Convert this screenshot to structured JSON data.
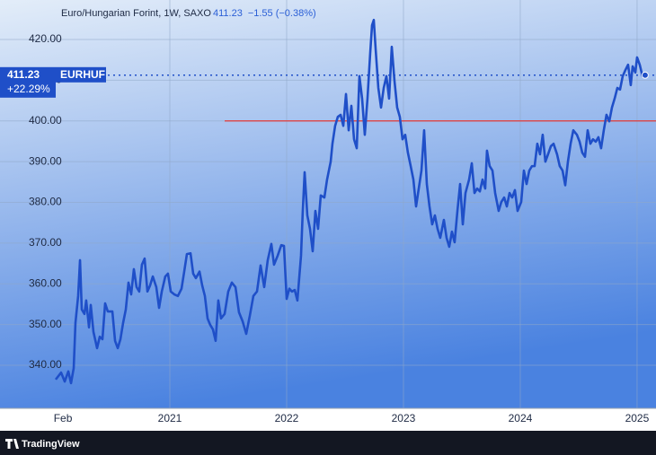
{
  "chart_data": {
    "type": "line",
    "title": "Euro/Hungarian Forint, 1W, SAXO",
    "last_label": "411.23",
    "change_label": "−1.55 (−0.38%)",
    "symbol": "EURHUF",
    "percent_label": "+22.29%",
    "brand": "TradingView",
    "grid": true,
    "hline": {
      "value": 400,
      "color": "#e53935"
    },
    "xlim": [
      2019.546,
      2025.162
    ],
    "ylim": [
      329.42,
      429.7
    ],
    "xticks": [
      {
        "value": 2020.085,
        "label": "Feb"
      },
      2021,
      2022,
      2023,
      2024,
      2025
    ],
    "yticks": [
      {
        "value": 340,
        "label": "340.00"
      },
      {
        "value": 350,
        "label": "350.00"
      },
      {
        "value": 360,
        "label": "360.00"
      },
      {
        "value": 370,
        "label": "370.00"
      },
      {
        "value": 380,
        "label": "380.00"
      },
      {
        "value": 390,
        "label": "390.00"
      },
      {
        "value": 400,
        "label": "400.00"
      },
      {
        "value": 410,
        "label": "410.00"
      },
      {
        "value": 420,
        "label": "420.00"
      }
    ],
    "series": [
      {
        "name": "EURHUF",
        "color": "#1f4fc8",
        "x": [
          2020.023,
          2020.069,
          2020.1,
          2020.131,
          2020.154,
          2020.177,
          2020.192,
          2020.215,
          2020.231,
          2020.246,
          2020.269,
          2020.284,
          2020.308,
          2020.323,
          2020.346,
          2020.377,
          2020.4,
          2020.423,
          2020.446,
          2020.469,
          2020.508,
          2020.531,
          2020.554,
          2020.577,
          2020.6,
          2020.623,
          2020.646,
          2020.669,
          2020.692,
          2020.715,
          2020.738,
          2020.761,
          2020.784,
          2020.808,
          2020.831,
          2020.854,
          2020.884,
          2020.908,
          2020.931,
          2020.961,
          2020.984,
          2021.008,
          2021.038,
          2021.069,
          2021.1,
          2021.123,
          2021.146,
          2021.177,
          2021.2,
          2021.223,
          2021.254,
          2021.277,
          2021.3,
          2021.323,
          2021.346,
          2021.369,
          2021.392,
          2021.415,
          2021.438,
          2021.469,
          2021.5,
          2021.531,
          2021.562,
          2021.592,
          2021.623,
          2021.654,
          2021.685,
          2021.715,
          2021.746,
          2021.777,
          2021.808,
          2021.838,
          2021.869,
          2021.892,
          2021.923,
          2021.954,
          2021.977,
          2022.0,
          2022.023,
          2022.046,
          2022.069,
          2022.092,
          2022.123,
          2022.138,
          2022.154,
          2022.177,
          2022.2,
          2022.223,
          2022.246,
          2022.269,
          2022.292,
          2022.323,
          2022.346,
          2022.377,
          2022.392,
          2022.415,
          2022.438,
          2022.462,
          2022.485,
          2022.508,
          2022.531,
          2022.554,
          2022.577,
          2022.6,
          2022.623,
          2022.646,
          2022.669,
          2022.692,
          2022.715,
          2022.731,
          2022.746,
          2022.762,
          2022.785,
          2022.808,
          2022.831,
          2022.854,
          2022.877,
          2022.9,
          2022.923,
          2022.946,
          2022.969,
          2022.992,
          2023.015,
          2023.038,
          2023.062,
          2023.085,
          2023.108,
          2023.131,
          2023.154,
          2023.177,
          2023.2,
          2023.223,
          2023.246,
          2023.269,
          2023.292,
          2023.315,
          2023.346,
          2023.369,
          2023.392,
          2023.415,
          2023.438,
          2023.462,
          2023.485,
          2023.508,
          2023.531,
          2023.562,
          2023.585,
          2023.608,
          2023.631,
          2023.654,
          2023.677,
          2023.7,
          2023.715,
          2023.738,
          2023.762,
          2023.785,
          2023.815,
          2023.838,
          2023.862,
          2023.885,
          2023.908,
          2023.931,
          2023.954,
          2023.977,
          2024.008,
          2024.031,
          2024.054,
          2024.077,
          2024.1,
          2024.123,
          2024.146,
          2024.169,
          2024.192,
          2024.215,
          2024.238,
          2024.262,
          2024.285,
          2024.315,
          2024.338,
          2024.362,
          2024.385,
          2024.408,
          2024.431,
          2024.454,
          2024.485,
          2024.508,
          2024.531,
          2024.554,
          2024.577,
          2024.6,
          2024.623,
          2024.646,
          2024.669,
          2024.692,
          2024.715,
          2024.738,
          2024.762,
          2024.785,
          2024.808,
          2024.831,
          2024.854,
          2024.877,
          2024.9,
          2024.923,
          2024.946,
          2024.962,
          2024.985,
          2025.0,
          2025.023,
          2025.046,
          2025.069
        ],
        "values": [
          336.5,
          338.2,
          336.0,
          338.5,
          335.6,
          339.3,
          350.4,
          357.0,
          365.8,
          353.7,
          352.6,
          355.9,
          349.3,
          354.8,
          348.2,
          344.2,
          347.0,
          346.4,
          355.2,
          353.2,
          353.2,
          346.0,
          344.2,
          346.4,
          350.4,
          353.7,
          360.3,
          357.4,
          363.6,
          359.2,
          358.1,
          364.7,
          366.2,
          358.1,
          359.6,
          361.8,
          359.2,
          354.1,
          358.1,
          361.8,
          362.5,
          358.1,
          357.4,
          357.0,
          358.8,
          363.0,
          367.3,
          367.5,
          362.5,
          361.4,
          363.0,
          359.6,
          357.0,
          351.5,
          349.9,
          348.8,
          346.0,
          355.9,
          351.5,
          352.6,
          358.1,
          360.3,
          359.2,
          353.0,
          350.8,
          347.7,
          352.2,
          357.0,
          358.1,
          364.5,
          359.2,
          365.8,
          369.8,
          364.7,
          366.9,
          369.5,
          369.3,
          356.3,
          358.8,
          358.1,
          358.5,
          355.9,
          366.9,
          377.9,
          387.4,
          376.8,
          373.5,
          368.0,
          377.9,
          373.5,
          381.7,
          381.2,
          385.6,
          390.0,
          394.4,
          398.8,
          401.0,
          401.5,
          398.8,
          406.6,
          397.7,
          403.7,
          395.5,
          393.3,
          411.0,
          405.5,
          396.6,
          405.5,
          416.5,
          423.5,
          424.8,
          417.6,
          408.1,
          403.3,
          408.1,
          411.0,
          405.5,
          418.2,
          409.9,
          403.3,
          401.0,
          395.5,
          396.6,
          392.2,
          388.9,
          385.6,
          379.0,
          383.4,
          387.8,
          397.7,
          384.5,
          379.0,
          374.6,
          376.8,
          373.5,
          371.3,
          375.7,
          371.3,
          369.1,
          372.8,
          370.2,
          377.9,
          384.5,
          374.6,
          382.3,
          385.6,
          389.6,
          382.3,
          383.4,
          382.7,
          385.6,
          383.4,
          392.7,
          388.9,
          387.8,
          382.3,
          377.9,
          380.1,
          381.2,
          379.0,
          382.3,
          381.2,
          383.0,
          377.9,
          380.1,
          387.8,
          384.5,
          387.8,
          388.9,
          388.9,
          394.4,
          391.8,
          396.6,
          390.0,
          391.8,
          393.8,
          394.4,
          391.8,
          388.9,
          387.8,
          384.2,
          390.0,
          394.4,
          397.7,
          396.6,
          394.9,
          392.2,
          391.2,
          397.7,
          394.4,
          395.5,
          394.9,
          396.0,
          393.3,
          397.7,
          401.5,
          399.9,
          403.3,
          405.5,
          408.1,
          407.7,
          411.0,
          412.5,
          413.8,
          408.8,
          413.4,
          411.9,
          415.6,
          413.8,
          411.0,
          411.23
        ]
      }
    ]
  }
}
